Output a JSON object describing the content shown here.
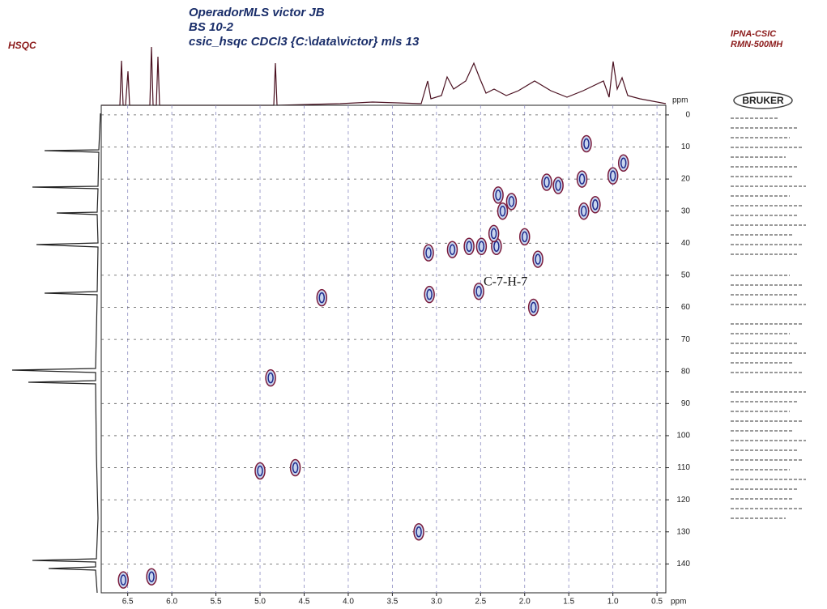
{
  "chart_data": {
    "type": "scatter",
    "title": [
      "OperadorMLS victor JB",
      "BS 10-2",
      "csic_hsqc CDCl3 {C:\\data\\victor} mls 13"
    ],
    "experiment": "HSQC",
    "institution": [
      "IPNA-CSIC",
      "RMN-500MH"
    ],
    "logo": "BRUKER",
    "xlabel": "ppm",
    "ylabel": "ppm",
    "x": [
      6.55,
      6.23,
      4.88,
      3.08,
      2.52,
      3.09,
      2.82,
      2.63,
      2.49,
      2.32,
      2.35,
      2.25,
      2.3,
      2.15,
      1.75,
      1.62,
      1.35,
      1.3,
      1.33,
      1.2,
      0.88,
      1.0,
      5.0,
      4.6,
      3.2,
      1.9,
      2.0,
      1.85,
      4.3
    ],
    "y": [
      145,
      144,
      82,
      56,
      55,
      43,
      42,
      41,
      41,
      41,
      37,
      30,
      25,
      27,
      21,
      22,
      20,
      9,
      30,
      28,
      15,
      19,
      111,
      110,
      130,
      60,
      38,
      45,
      57
    ],
    "color": "#1e2a8c",
    "xlim": [
      6.8,
      0.4
    ],
    "ylim": [
      -3,
      149
    ],
    "xticks": [
      6.5,
      {
        "value": 6,
        "label": "6.0"
      },
      5.5,
      {
        "value": 5,
        "label": "5.0"
      },
      4.5,
      {
        "value": 4,
        "label": "4.0"
      },
      3.5,
      {
        "value": 3,
        "label": "3.0"
      },
      2.5,
      {
        "value": 2,
        "label": "2.0"
      },
      1.5,
      {
        "value": 1,
        "label": "1.0"
      },
      0.5
    ],
    "yticks": [
      0,
      10,
      20,
      30,
      40,
      50,
      60,
      70,
      80,
      90,
      100,
      110,
      120,
      130,
      140
    ],
    "grid": true,
    "annotations": [
      "C-7-H-7"
    ]
  }
}
